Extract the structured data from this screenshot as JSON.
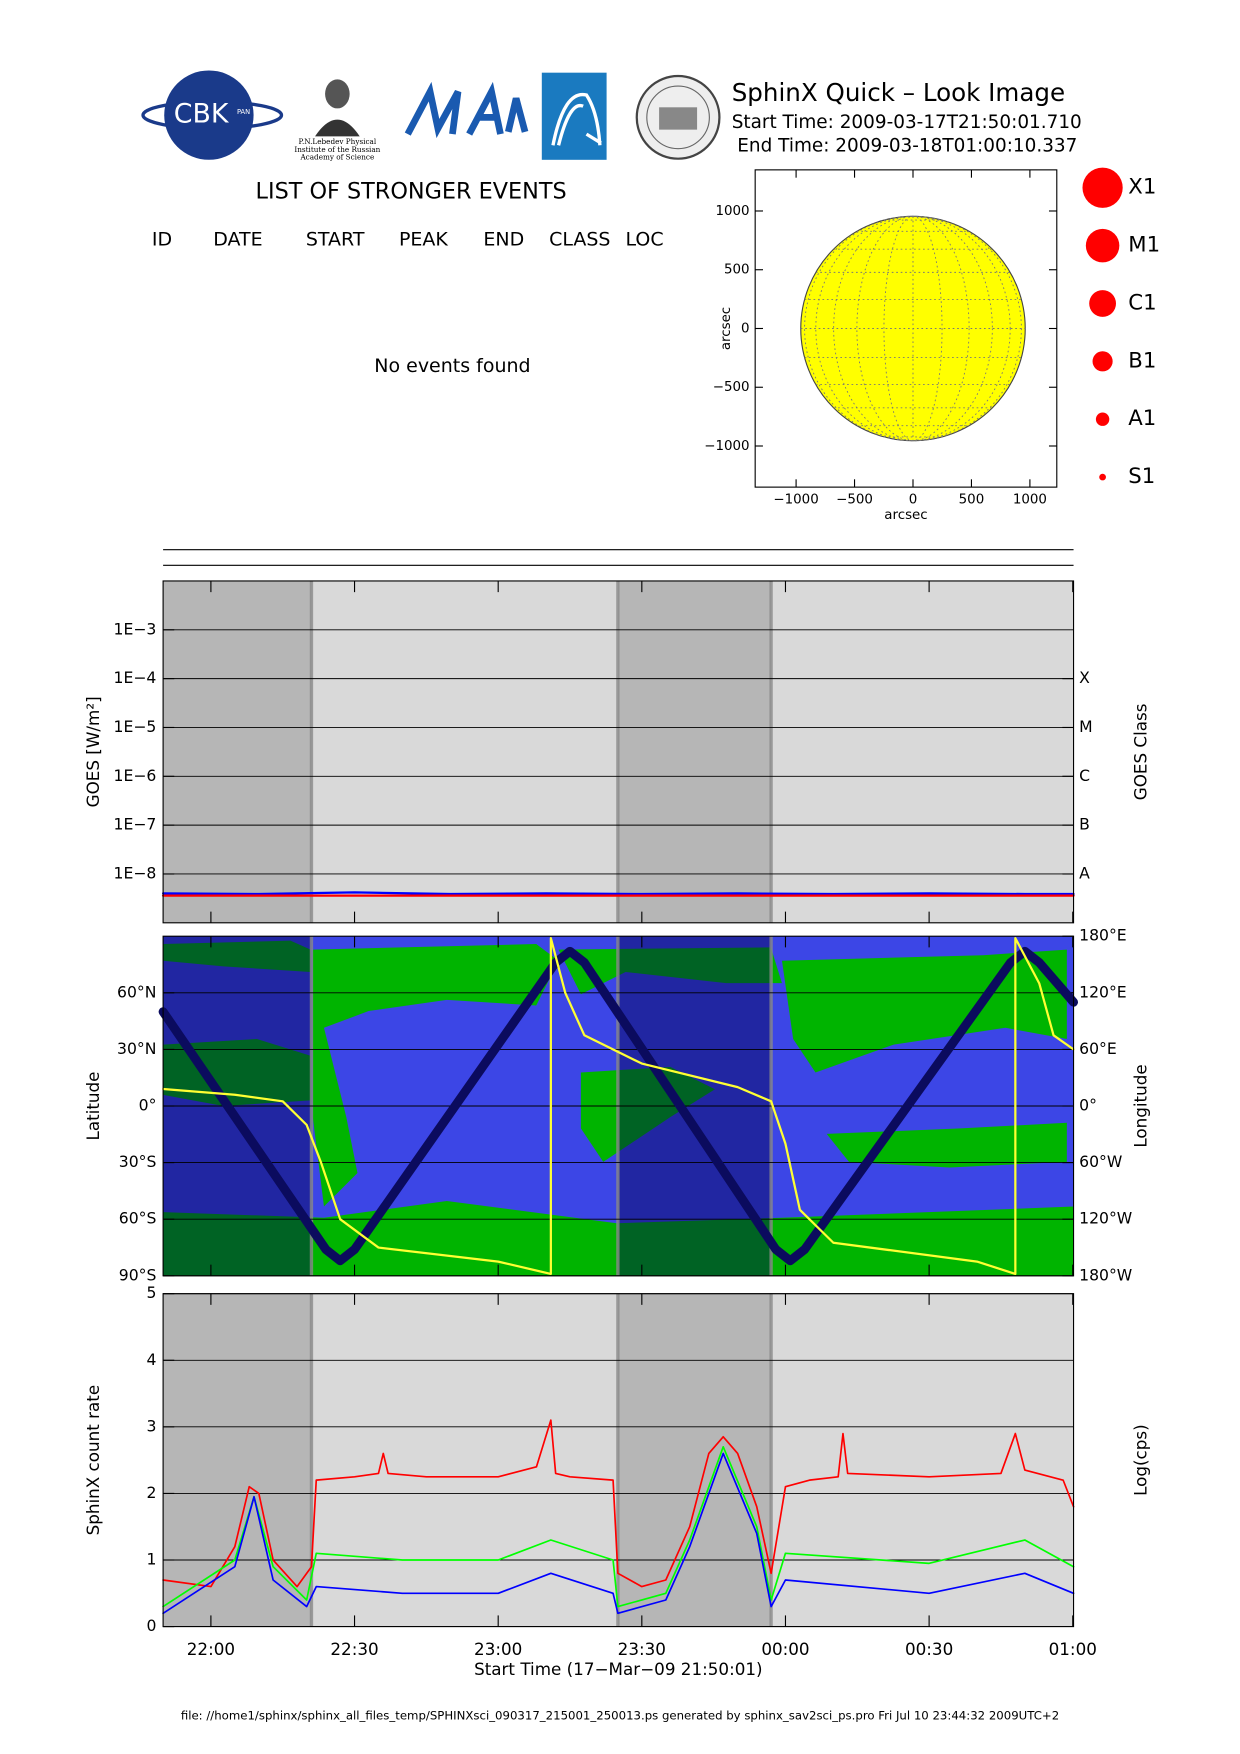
{
  "header": {
    "logos": {
      "cbk": "CBK",
      "pan": "PAN",
      "lebedev": [
        "P.N.Lebedev Physical",
        "Institute of the Russian",
        "Academy of Science"
      ]
    },
    "title": "SphinX Quick – Look Image",
    "start_time": "Start Time: 2009-03-17T21:50:01.710",
    "end_time": "End Time: 2009-03-18T01:00:10.337"
  },
  "events": {
    "title": "LIST OF STRONGER EVENTS",
    "columns": [
      "ID",
      "DATE",
      "START",
      "PEAK",
      "END",
      "CLASS",
      "LOC"
    ],
    "message": "No events found"
  },
  "chart_data": [
    {
      "type": "disc",
      "xlabel": "arcsec",
      "ylabel": "arcsec",
      "xlim": [
        -1350,
        1230
      ],
      "ylim": [
        -1350,
        1350
      ],
      "xticks": [
        {
          "value": -1000,
          "label": "−1000"
        },
        {
          "value": -500,
          "label": "−500"
        },
        0,
        500,
        1000
      ],
      "yticks": [
        {
          "value": -1000,
          "label": "−1000"
        },
        {
          "value": -500,
          "label": "−500"
        },
        0,
        500,
        1000
      ],
      "disc_radius": 960,
      "color": "#ffff00",
      "legend": [
        "X1",
        "M1",
        "C1",
        "B1",
        "A1",
        "S1"
      ],
      "legend_color": "#ff0000"
    },
    {
      "type": "line",
      "ylabel": "GOES [W/m²]",
      "y2label": "GOES Class",
      "log_y": true,
      "grid": true,
      "xlim": [
        "21:50:01",
        "01:00:10"
      ],
      "xticks": [
        "22:00",
        "22:30",
        "23:00",
        "23:30",
        "00:00",
        "00:30",
        "01:00"
      ],
      "ylim": [
        1e-09,
        0.01
      ],
      "yticks": [
        {
          "value": 1e-08,
          "label": "1E−8"
        },
        {
          "value": 1e-07,
          "label": "1E−7"
        },
        {
          "value": 1e-06,
          "label": "1E−6"
        },
        {
          "value": 1e-05,
          "label": "1E−5"
        },
        {
          "value": 0.0001,
          "label": "1E−4"
        },
        {
          "value": 0.001,
          "label": "1E−3"
        }
      ],
      "y2lim": [
        1e-09,
        0.01
      ],
      "y2ticks": [
        {
          "value": 1e-08,
          "label": "A"
        },
        {
          "value": 1e-07,
          "label": "B"
        },
        {
          "value": 1e-06,
          "label": "C"
        },
        {
          "value": 1e-05,
          "label": "M"
        },
        {
          "value": 0.0001,
          "label": "X"
        }
      ],
      "background_color": "#d9d9d9",
      "shaded_color": "#8c8c8c",
      "shaded_intervals": [
        [
          "21:50:01",
          "22:21"
        ],
        [
          "23:25",
          "23:57"
        ]
      ],
      "series": [
        {
          "color": "#0000ff",
          "x": [
            "21:50:01",
            "22:10",
            "22:30",
            "22:50",
            "23:10",
            "23:30",
            "23:50",
            "00:10",
            "00:30",
            "00:50",
            "01:00:10"
          ],
          "values": [
            4e-09,
            3.9e-09,
            4.2e-09,
            3.9e-09,
            4e-09,
            3.9e-09,
            4e-09,
            3.9e-09,
            4e-09,
            3.9e-09,
            3.9e-09
          ]
        },
        {
          "color": "#ff0000",
          "x": [
            "21:50:01",
            "22:10",
            "22:30",
            "22:50",
            "23:10",
            "23:30",
            "23:50",
            "00:10",
            "00:30",
            "00:50",
            "01:00:10"
          ],
          "values": [
            3.6e-09,
            3.6e-09,
            3.6e-09,
            3.6e-09,
            3.6e-09,
            3.6e-09,
            3.6e-09,
            3.6e-09,
            3.6e-09,
            3.6e-09,
            3.6e-09
          ]
        }
      ]
    },
    {
      "type": "line",
      "ylabel": "Latitude",
      "y2label": "Longitude",
      "grid": true,
      "xlim": [
        "21:50:01",
        "01:00:10"
      ],
      "xticks": [
        "22:00",
        "22:30",
        "23:00",
        "23:30",
        "00:00",
        "00:30",
        "01:00"
      ],
      "ylim": [
        -90,
        90
      ],
      "yticks": [
        {
          "value": -90,
          "label": "90°S"
        },
        {
          "value": -60,
          "label": "60°S"
        },
        {
          "value": -30,
          "label": "30°S"
        },
        {
          "value": 0,
          "label": "0°"
        },
        {
          "value": 30,
          "label": "30°N"
        },
        {
          "value": 60,
          "label": "60°N"
        }
      ],
      "y2lim": [
        -180,
        180
      ],
      "y2ticks": [
        {
          "value": -180,
          "label": "180°W"
        },
        {
          "value": -120,
          "label": "120°W"
        },
        {
          "value": -60,
          "label": "60°W"
        },
        {
          "value": 0,
          "label": "0°"
        },
        {
          "value": 60,
          "label": "60°E"
        },
        {
          "value": 120,
          "label": "120°E"
        },
        {
          "value": 180,
          "label": "180°E"
        }
      ],
      "background_color": "#3c46e6",
      "shaded_color": "#000050",
      "shaded_intervals": [
        [
          "21:50:01",
          "22:21"
        ],
        [
          "23:25",
          "23:57"
        ]
      ],
      "series": [
        {
          "color": "#0b0b5e",
          "x": [
            "21:50:01",
            "22:24",
            "22:27",
            "22:30",
            "23:12",
            "23:15",
            "23:18",
            "23:58",
            "00:01",
            "00:04",
            "00:47",
            "00:50",
            "00:53",
            "01:00:10"
          ],
          "values": [
            50,
            -76,
            -82,
            -76,
            76,
            82,
            76,
            -76,
            -82,
            -76,
            76,
            82,
            76,
            55
          ]
        },
        {
          "color": "#ffff33",
          "axis": "y2",
          "x": [
            "21:50:01",
            "22:05",
            "22:15",
            "22:20",
            "22:23",
            "22:27",
            "22:35",
            "23:00",
            "23:11",
            "23:11",
            "23:14",
            "23:18",
            "23:30",
            "23:50",
            "23:57",
            "00:00",
            "00:03",
            "00:10",
            "00:40",
            "00:48",
            "00:48",
            "00:53",
            "00:56",
            "01:00:10"
          ],
          "values": [
            18,
            12,
            5,
            -20,
            -60,
            -120,
            -150,
            -165,
            -178,
            178,
            120,
            75,
            45,
            20,
            5,
            -40,
            -110,
            -145,
            -165,
            -178,
            178,
            130,
            75,
            60
          ]
        }
      ]
    },
    {
      "type": "line",
      "ylabel": "SphinX count rate",
      "y2label": "Log(cps)",
      "xlabel": "Start Time (17−Mar−09 21:50:01)",
      "grid": true,
      "xlim": [
        "21:50:01",
        "01:00:10"
      ],
      "xticks": [
        "22:00",
        "22:30",
        "23:00",
        "23:30",
        "00:00",
        "00:30",
        "01:00"
      ],
      "ylim": [
        0,
        5
      ],
      "yticks": [
        0,
        1,
        2,
        3,
        4,
        5
      ],
      "background_color": "#d9d9d9",
      "shaded_color": "#8c8c8c",
      "shaded_intervals": [
        [
          "21:50:01",
          "22:21"
        ],
        [
          "23:25",
          "23:57"
        ]
      ],
      "series": [
        {
          "color": "#ff0000",
          "x": [
            "21:50:01",
            "22:00",
            "22:05",
            "22:08",
            "22:10",
            "22:13",
            "22:18",
            "22:21",
            "22:22",
            "22:30",
            "22:35",
            "22:36",
            "22:37",
            "22:45",
            "23:00",
            "23:08",
            "23:11",
            "23:12",
            "23:15",
            "23:24",
            "23:25",
            "23:30",
            "23:35",
            "23:40",
            "23:44",
            "23:47",
            "23:50",
            "23:54",
            "23:57",
            "00:00",
            "00:05",
            "00:11",
            "00:12",
            "00:13",
            "00:30",
            "00:45",
            "00:48",
            "00:50",
            "00:58",
            "01:00:10"
          ],
          "values": [
            0.7,
            0.6,
            1.2,
            2.1,
            2.0,
            1.0,
            0.6,
            0.9,
            2.2,
            2.25,
            2.3,
            2.6,
            2.3,
            2.25,
            2.25,
            2.4,
            3.1,
            2.3,
            2.25,
            2.2,
            0.8,
            0.6,
            0.7,
            1.5,
            2.6,
            2.85,
            2.6,
            1.8,
            0.8,
            2.1,
            2.2,
            2.25,
            2.9,
            2.3,
            2.25,
            2.3,
            2.9,
            2.35,
            2.2,
            1.8
          ]
        },
        {
          "color": "#00ff00",
          "x": [
            "21:50:01",
            "22:05",
            "22:09",
            "22:13",
            "22:20",
            "22:22",
            "22:40",
            "23:00",
            "23:11",
            "23:24",
            "23:25",
            "23:35",
            "23:40",
            "23:47",
            "23:54",
            "23:57",
            "00:00",
            "00:30",
            "00:50",
            "01:00:10"
          ],
          "values": [
            0.3,
            1.0,
            1.95,
            0.9,
            0.4,
            1.1,
            1.0,
            1.0,
            1.3,
            1.0,
            0.3,
            0.5,
            1.3,
            2.7,
            1.5,
            0.4,
            1.1,
            0.95,
            1.3,
            0.9
          ]
        },
        {
          "color": "#0000ff",
          "x": [
            "21:50:01",
            "22:05",
            "22:09",
            "22:13",
            "22:20",
            "22:22",
            "22:40",
            "23:00",
            "23:11",
            "23:24",
            "23:25",
            "23:35",
            "23:40",
            "23:47",
            "23:54",
            "23:57",
            "00:00",
            "00:30",
            "00:50",
            "01:00:10"
          ],
          "values": [
            0.2,
            0.9,
            1.95,
            0.7,
            0.3,
            0.6,
            0.5,
            0.5,
            0.8,
            0.5,
            0.2,
            0.4,
            1.2,
            2.6,
            1.4,
            0.3,
            0.7,
            0.5,
            0.8,
            0.5
          ]
        }
      ]
    }
  ],
  "footer": "file: //home1/sphinx/sphinx_all_files_temp/SPHINXsci_090317_215001_250013.ps generated by sphinx_sav2sci_ps.pro Fri Jul 10 23:44:32 2009UTC+2"
}
